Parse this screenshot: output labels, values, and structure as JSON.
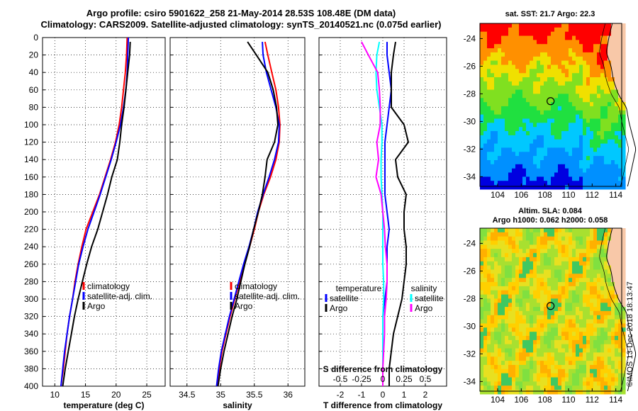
{
  "header": {
    "line1": "Argo profile: csiro 5901622_258 21-May-2014 28.53S 108.48E (DM data)",
    "line2": "Climatology: CARS2009. Satellite-adjusted climatology: synTS_20140521.nc (0.075d earlier)"
  },
  "colors": {
    "climatology": "#ff0000",
    "satellite": "#0000ff",
    "argo": "#000000",
    "satellite_s": "#00ffff",
    "argo_s": "#ff00ff"
  },
  "chart_data": [
    {
      "type": "line",
      "panel": "temperature",
      "xlabel": "temperature (deg C)",
      "ylabel": "",
      "xlim": [
        8,
        28
      ],
      "ylim": [
        400,
        0
      ],
      "xticks": [
        10,
        15,
        20,
        25
      ],
      "yticks": [
        0,
        20,
        40,
        60,
        80,
        100,
        120,
        140,
        160,
        180,
        200,
        220,
        240,
        260,
        280,
        300,
        320,
        340,
        360,
        380,
        400
      ],
      "legend": [
        "climatology",
        "satellite-adj. clim.",
        "Argo"
      ],
      "legend_position": "lower-right",
      "series": [
        {
          "name": "climatology",
          "color_key": "climatology",
          "x": [
            21.8,
            21.7,
            21.5,
            21.2,
            20.9,
            20.5,
            19.9,
            19.1,
            18.2,
            17.3,
            16.2,
            15.1,
            14.4,
            13.8,
            13.3,
            12.9,
            12.4,
            12.0,
            11.7,
            11.4,
            11.0
          ],
          "y": [
            0,
            20,
            40,
            60,
            80,
            100,
            120,
            140,
            160,
            180,
            200,
            220,
            240,
            260,
            280,
            300,
            320,
            340,
            360,
            380,
            400
          ]
        },
        {
          "name": "satellite-adj. clim.",
          "color_key": "satellite",
          "x": [
            22.0,
            21.9,
            21.8,
            21.6,
            21.2,
            20.7,
            20.0,
            19.2,
            18.3,
            17.4,
            16.4,
            15.4,
            14.6,
            13.9,
            13.4,
            12.9,
            12.4,
            12.0,
            11.6,
            11.3,
            11.0
          ],
          "y": [
            0,
            20,
            40,
            60,
            80,
            100,
            120,
            140,
            160,
            180,
            200,
            220,
            240,
            260,
            280,
            300,
            320,
            340,
            360,
            380,
            400
          ]
        },
        {
          "name": "Argo",
          "color_key": "argo",
          "x": [
            22.3,
            22.2,
            21.9,
            21.6,
            21.3,
            20.9,
            20.6,
            20.2,
            19.3,
            18.6,
            17.8,
            17.0,
            16.0,
            15.2,
            14.5,
            13.8,
            13.2,
            12.7,
            12.2,
            11.7,
            11.3
          ],
          "y": [
            5,
            20,
            40,
            60,
            80,
            100,
            120,
            140,
            160,
            180,
            200,
            220,
            240,
            260,
            280,
            300,
            320,
            340,
            360,
            380,
            400
          ]
        }
      ]
    },
    {
      "type": "line",
      "panel": "salinity",
      "xlabel": "salinity",
      "ylabel": "",
      "xlim": [
        34.25,
        36.25
      ],
      "ylim": [
        400,
        0
      ],
      "xticks": [
        34.5,
        35,
        35.5,
        36
      ],
      "xtick_labels": [
        "34.5",
        "35",
        "35.5",
        "36"
      ],
      "legend": [
        "climatology",
        "satellite-adj. clim.",
        "Argo"
      ],
      "legend_position": "lower-right",
      "series": [
        {
          "name": "climatology",
          "color_key": "climatology",
          "x": [
            35.66,
            35.7,
            35.76,
            35.82,
            35.86,
            35.88,
            35.87,
            35.82,
            35.74,
            35.64,
            35.56,
            35.5,
            35.43,
            35.35,
            35.28,
            35.21,
            35.14,
            35.08,
            35.02,
            34.98,
            34.95
          ],
          "y": [
            5,
            20,
            40,
            60,
            80,
            100,
            120,
            140,
            160,
            180,
            200,
            220,
            240,
            260,
            280,
            300,
            320,
            340,
            360,
            380,
            400
          ]
        },
        {
          "name": "satellite-adj. clim.",
          "color_key": "satellite",
          "x": [
            35.62,
            35.63,
            35.68,
            35.75,
            35.82,
            35.87,
            35.86,
            35.8,
            35.72,
            35.63,
            35.55,
            35.49,
            35.42,
            35.34,
            35.27,
            35.2,
            35.13,
            35.07,
            35.01,
            34.97,
            34.94
          ],
          "y": [
            5,
            20,
            40,
            60,
            80,
            100,
            120,
            140,
            160,
            180,
            200,
            220,
            240,
            260,
            280,
            300,
            320,
            340,
            360,
            380,
            400
          ]
        },
        {
          "name": "Argo",
          "color_key": "argo",
          "x": [
            35.4,
            35.53,
            35.7,
            35.78,
            35.83,
            35.85,
            35.8,
            35.69,
            35.66,
            35.62,
            35.56,
            35.49,
            35.43,
            35.36,
            35.3,
            35.24,
            35.17,
            35.11,
            35.05,
            35.0,
            34.96
          ],
          "y": [
            5,
            20,
            40,
            60,
            80,
            100,
            120,
            140,
            160,
            180,
            200,
            220,
            240,
            260,
            280,
            300,
            320,
            340,
            360,
            380,
            400
          ]
        }
      ]
    },
    {
      "type": "line",
      "panel": "differences",
      "xlabel": "T difference from climatology",
      "xlabel_top": "S difference from climatology",
      "xlim": [
        -3,
        3
      ],
      "ylim": [
        400,
        0
      ],
      "xticks": [
        -2,
        -1,
        0,
        1,
        2
      ],
      "xtick_labels": [
        "-2",
        "-1",
        "0",
        "1",
        "2"
      ],
      "x2lim": [
        -0.75,
        0.75
      ],
      "x2ticks": [
        -0.5,
        -0.25,
        0,
        0.25,
        0.5
      ],
      "x2tick_labels": [
        "-0.5",
        "-0.25",
        "0",
        "0.25",
        "0.5"
      ],
      "legend_groups": [
        {
          "title": "temperature",
          "entries": [
            "satellite",
            "Argo"
          ]
        },
        {
          "title": "salinity",
          "entries": [
            "satellite",
            "Argo"
          ]
        }
      ],
      "series": [
        {
          "name": "T satellite",
          "axis": "T",
          "color_key": "satellite",
          "x": [
            0.2,
            0.2,
            0.3,
            0.4,
            0.3,
            0.2,
            0.1,
            0.1,
            0.1,
            0.1,
            0.2,
            0.3,
            0.2,
            0.2,
            0.2,
            0.1,
            0.0,
            0.0,
            0.0,
            0.0,
            0.0
          ],
          "y": [
            5,
            20,
            40,
            60,
            80,
            100,
            120,
            140,
            160,
            180,
            200,
            220,
            240,
            260,
            280,
            300,
            320,
            340,
            360,
            380,
            400
          ]
        },
        {
          "name": "T Argo",
          "axis": "T",
          "color_key": "argo",
          "x": [
            0.6,
            0.5,
            0.4,
            0.4,
            0.4,
            1.0,
            1.2,
            0.6,
            0.7,
            1.1,
            1.0,
            1.0,
            1.1,
            1.1,
            1.0,
            0.9,
            0.7,
            0.5,
            0.4,
            0.3,
            0.3
          ],
          "y": [
            5,
            20,
            40,
            60,
            80,
            100,
            120,
            140,
            160,
            180,
            200,
            220,
            240,
            260,
            280,
            300,
            320,
            340,
            360,
            380,
            400
          ]
        },
        {
          "name": "S satellite",
          "axis": "S",
          "color_key": "satellite_s",
          "x": [
            -0.04,
            -0.07,
            -0.08,
            -0.07,
            -0.04,
            -0.01,
            -0.01,
            -0.02,
            -0.02,
            -0.01,
            0.0,
            0.0,
            0.0,
            0.0,
            0.01,
            0.01,
            0.0,
            0.0,
            0.0,
            0.0,
            0.0
          ],
          "y": [
            5,
            20,
            40,
            60,
            80,
            100,
            120,
            140,
            160,
            180,
            200,
            220,
            240,
            260,
            280,
            300,
            320,
            340,
            360,
            380,
            400
          ]
        },
        {
          "name": "S Argo",
          "axis": "S",
          "color_key": "argo_s",
          "x": [
            -0.25,
            -0.17,
            -0.06,
            -0.04,
            -0.03,
            -0.03,
            -0.07,
            -0.05,
            -0.08,
            -0.02,
            0.0,
            0.02,
            0.03,
            0.05,
            0.05,
            0.04,
            0.02,
            0.02,
            0.01,
            0.0,
            0.0
          ],
          "y": [
            5,
            20,
            40,
            60,
            80,
            100,
            120,
            140,
            160,
            180,
            200,
            220,
            240,
            260,
            280,
            300,
            320,
            340,
            360,
            380,
            400
          ]
        }
      ]
    },
    {
      "type": "heatmap",
      "panel": "sst_map",
      "title": "sat. SST: 21.7 Argo: 22.3",
      "xlim": [
        102.5,
        114.5
      ],
      "ylim": [
        -34.7,
        -22.9
      ],
      "xticks": [
        104,
        106,
        108,
        110,
        112,
        114
      ],
      "yticks": [
        -24,
        -26,
        -28,
        -30,
        -32,
        -34
      ],
      "ytick_labels": [
        "-24",
        "-26",
        "-28",
        "-30",
        "-32",
        "-34"
      ],
      "float_position": {
        "lon": 108.48,
        "lat": -28.53
      }
    },
    {
      "type": "heatmap",
      "panel": "sla_map",
      "title_line1": "Altim. SLA: 0.084",
      "title_line2": "Argo h1000: 0.062 h2000: 0.058",
      "xlim": [
        102.5,
        114.5
      ],
      "ylim": [
        -34.7,
        -22.9
      ],
      "xticks": [
        104,
        106,
        108,
        110,
        112,
        114
      ],
      "yticks": [
        -24,
        -26,
        -28,
        -30,
        -32,
        -34
      ],
      "ytick_labels": [
        "-24",
        "-26",
        "-28",
        "-30",
        "-32",
        "-34"
      ],
      "float_position": {
        "lon": 108.48,
        "lat": -28.53
      }
    }
  ],
  "footer": {
    "stamp": "©IMOS 13-Dec-2018 18:13:47"
  }
}
